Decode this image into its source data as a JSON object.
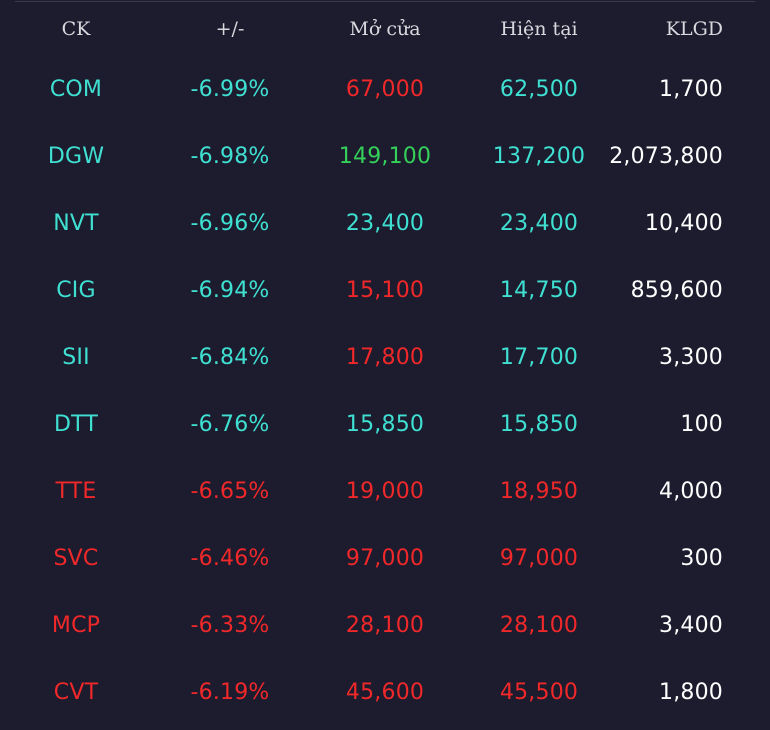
{
  "table": {
    "headers": {
      "symbol": "CK",
      "change": "+/-",
      "open": "Mở cửa",
      "current": "Hiện tại",
      "volume": "KLGD"
    },
    "rows": [
      {
        "symbol": "COM",
        "change": "-6.99%",
        "open": "67,000",
        "current": "62,500",
        "volume": "1,700",
        "symbol_color": "#3fe0d2",
        "open_color": "#f0282a",
        "current_color": "#3fe0d2"
      },
      {
        "symbol": "DGW",
        "change": "-6.98%",
        "open": "149,100",
        "current": "137,200",
        "volume": "2,073,800",
        "symbol_color": "#3fe0d2",
        "open_color": "#34d05a",
        "current_color": "#3fe0d2"
      },
      {
        "symbol": "NVT",
        "change": "-6.96%",
        "open": "23,400",
        "current": "23,400",
        "volume": "10,400",
        "symbol_color": "#3fe0d2",
        "open_color": "#3fe0d2",
        "current_color": "#3fe0d2"
      },
      {
        "symbol": "CIG",
        "change": "-6.94%",
        "open": "15,100",
        "current": "14,750",
        "volume": "859,600",
        "symbol_color": "#3fe0d2",
        "open_color": "#f0282a",
        "current_color": "#3fe0d2"
      },
      {
        "symbol": "SII",
        "change": "-6.84%",
        "open": "17,800",
        "current": "17,700",
        "volume": "3,300",
        "symbol_color": "#3fe0d2",
        "open_color": "#f0282a",
        "current_color": "#3fe0d2"
      },
      {
        "symbol": "DTT",
        "change": "-6.76%",
        "open": "15,850",
        "current": "15,850",
        "volume": "100",
        "symbol_color": "#3fe0d2",
        "open_color": "#3fe0d2",
        "current_color": "#3fe0d2"
      },
      {
        "symbol": "TTE",
        "change": "-6.65%",
        "open": "19,000",
        "current": "18,950",
        "volume": "4,000",
        "symbol_color": "#f0282a",
        "open_color": "#f0282a",
        "current_color": "#f0282a"
      },
      {
        "symbol": "SVC",
        "change": "-6.46%",
        "open": "97,000",
        "current": "97,000",
        "volume": "300",
        "symbol_color": "#f0282a",
        "open_color": "#f0282a",
        "current_color": "#f0282a"
      },
      {
        "symbol": "MCP",
        "change": "-6.33%",
        "open": "28,100",
        "current": "28,100",
        "volume": "3,400",
        "symbol_color": "#f0282a",
        "open_color": "#f0282a",
        "current_color": "#f0282a"
      },
      {
        "symbol": "CVT",
        "change": "-6.19%",
        "open": "45,600",
        "current": "45,500",
        "volume": "1,800",
        "symbol_color": "#f0282a",
        "open_color": "#f0282a",
        "current_color": "#f0282a"
      }
    ]
  },
  "colors": {
    "background": "#1c1c2e",
    "floor": "#3fe0d2",
    "decrease": "#f0282a",
    "increase": "#34d05a",
    "text": "#ffffff",
    "header_text": "#d8d8de"
  }
}
